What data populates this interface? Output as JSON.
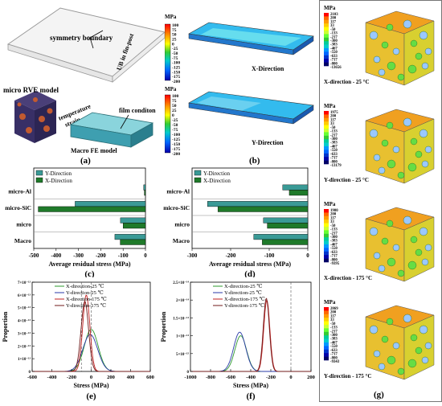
{
  "panel_a": {
    "label": "(a)",
    "annotations": {
      "symmetry": "symmetry boundary",
      "micro_rve": "micro RVE model",
      "temperature": "temperature",
      "strain": "strain",
      "macro": "Macro FE model",
      "film": "film conditon",
      "ub": "UB in fin-post"
    }
  },
  "panel_b": {
    "label": "(b)",
    "unit": "MPa",
    "ticks": [
      "100",
      "75",
      "50",
      "25",
      "0",
      "-25",
      "-50",
      "-75",
      "-100",
      "-125",
      "-150",
      "-175",
      "-200"
    ],
    "top_label": "X-Direction",
    "bottom_label": "Y-Direction"
  },
  "panel_g": {
    "label": "(g)",
    "items": [
      {
        "unit": "MPa",
        "caption": "X-direction - 25 °C",
        "ticks": [
          "2103",
          "200",
          "117",
          "33",
          "-50",
          "-133",
          "-217",
          "-300",
          "-383",
          "-467",
          "-550",
          "-633",
          "-717",
          "-800",
          "-13656"
        ]
      },
      {
        "unit": "MPa",
        "caption": "Y-direction - 25 °C",
        "ticks": [
          "1975",
          "200",
          "117",
          "33",
          "-50",
          "-133",
          "-217",
          "-300",
          "-383",
          "-467",
          "-550",
          "-633",
          "-717",
          "-800",
          "-13179"
        ]
      },
      {
        "unit": "MPa",
        "caption": "X-direction - 175 °C",
        "ticks": [
          "1980",
          "200",
          "117",
          "33",
          "-50",
          "-133",
          "-217",
          "-300",
          "-383",
          "-467",
          "-550",
          "-633",
          "-717",
          "-800",
          "-9395"
        ]
      },
      {
        "unit": "MPa",
        "caption": "Y-direction - 175 °C",
        "ticks": [
          "2869",
          "200",
          "117",
          "33",
          "-50",
          "-133",
          "-217",
          "-300",
          "-383",
          "-467",
          "-550",
          "-633",
          "-717",
          "-800",
          "-9343"
        ]
      }
    ]
  },
  "colors": {
    "y_direction": "#3a9a96",
    "x_direction": "#1f7a2a",
    "green_curve": "#2e9a2e",
    "blue_curve": "#2a3aa8",
    "red_curve": "#c02020",
    "dark_red_curve": "#701818"
  },
  "chart_data": [
    {
      "id": "c",
      "type": "bar",
      "label": "(c)",
      "categories": [
        "micro-Al",
        "micro-SiC",
        "micro",
        "Macro"
      ],
      "series": [
        {
          "name": "Y-Direction",
          "values": [
            -8,
            -315,
            -112,
            -137
          ]
        },
        {
          "name": "X-Direction",
          "values": [
            -5,
            -480,
            -100,
            -113
          ]
        }
      ],
      "xlim": [
        -500,
        0
      ],
      "xticks": [
        "-500",
        "-400",
        "-300",
        "-200",
        "-100",
        "0"
      ],
      "xlabel": "Average residual stress (MPa)",
      "legend": "top-left",
      "orientation": "horizontal"
    },
    {
      "id": "d",
      "type": "bar",
      "label": "(d)",
      "categories": [
        "micro-Al",
        "micro-SiC",
        "micro",
        "Macro"
      ],
      "series": [
        {
          "name": "Y-Direction",
          "values": [
            -65,
            -260,
            -115,
            -140
          ]
        },
        {
          "name": "X-Direction",
          "values": [
            -48,
            -233,
            -105,
            -118
          ]
        }
      ],
      "xlim": [
        -300,
        0
      ],
      "xticks": [
        "-300",
        "-200",
        "-100",
        "0"
      ],
      "xlabel": "Average residual stress (MPa)",
      "legend": "top-left",
      "orientation": "horizontal"
    },
    {
      "id": "e",
      "type": "line",
      "label": "(e)",
      "xlabel": "Stress (MPa)",
      "ylabel": "Proportion",
      "xlim": [
        -600,
        600
      ],
      "xticks": [
        "-600",
        "-400",
        "-200",
        "0",
        "200",
        "400",
        "600"
      ],
      "ylim": [
        0,
        7e-13
      ],
      "yticks": [
        "0",
        "1×10⁻¹³",
        "2×10⁻¹³",
        "3×10⁻¹³",
        "4×10⁻¹³",
        "5×10⁻¹³",
        "6×10⁻¹³",
        "7×10⁻¹³"
      ],
      "series": [
        {
          "name": "X-direction-25 ℃",
          "peak": 0,
          "amp": 3.3e-13,
          "width": 70
        },
        {
          "name": "Y-direction-25 ℃",
          "peak": -10,
          "amp": 2.9e-13,
          "width": 75
        },
        {
          "name": "X-direction-175 ℃",
          "peak": -50,
          "amp": 6e-13,
          "width": 36
        },
        {
          "name": "Y-direction-175 ℃",
          "peak": -65,
          "amp": 5.5e-13,
          "width": 38
        }
      ],
      "dashed_x": [
        -100,
        0
      ]
    },
    {
      "id": "f",
      "type": "line",
      "label": "(f)",
      "xlabel": "Stress (MPa)",
      "ylabel": "Proportion",
      "xlim": [
        -1000,
        200
      ],
      "xticks": [
        "-1000",
        "-800",
        "-600",
        "-400",
        "-200",
        "0",
        "200"
      ],
      "ylim": [
        0,
        2.5e-14
      ],
      "yticks": [
        "0",
        "5×10⁻¹⁵",
        "1×10⁻¹⁴",
        "1.5×10⁻¹⁴",
        "2×10⁻¹⁴",
        "2.5×10⁻¹⁴"
      ],
      "series": [
        {
          "name": "X-direction-25 ℃",
          "peak": -500,
          "amp": 1e-14,
          "width": 58
        },
        {
          "name": "Y-direction-25 ℃",
          "peak": -510,
          "amp": 1.1e-14,
          "width": 60
        },
        {
          "name": "X-direction-175 ℃",
          "peak": -240,
          "amp": 2e-14,
          "width": 30
        },
        {
          "name": "Y-direction-175 ℃",
          "peak": -245,
          "amp": 2.05e-14,
          "width": 30
        }
      ],
      "dashed_x": [
        0
      ]
    }
  ]
}
